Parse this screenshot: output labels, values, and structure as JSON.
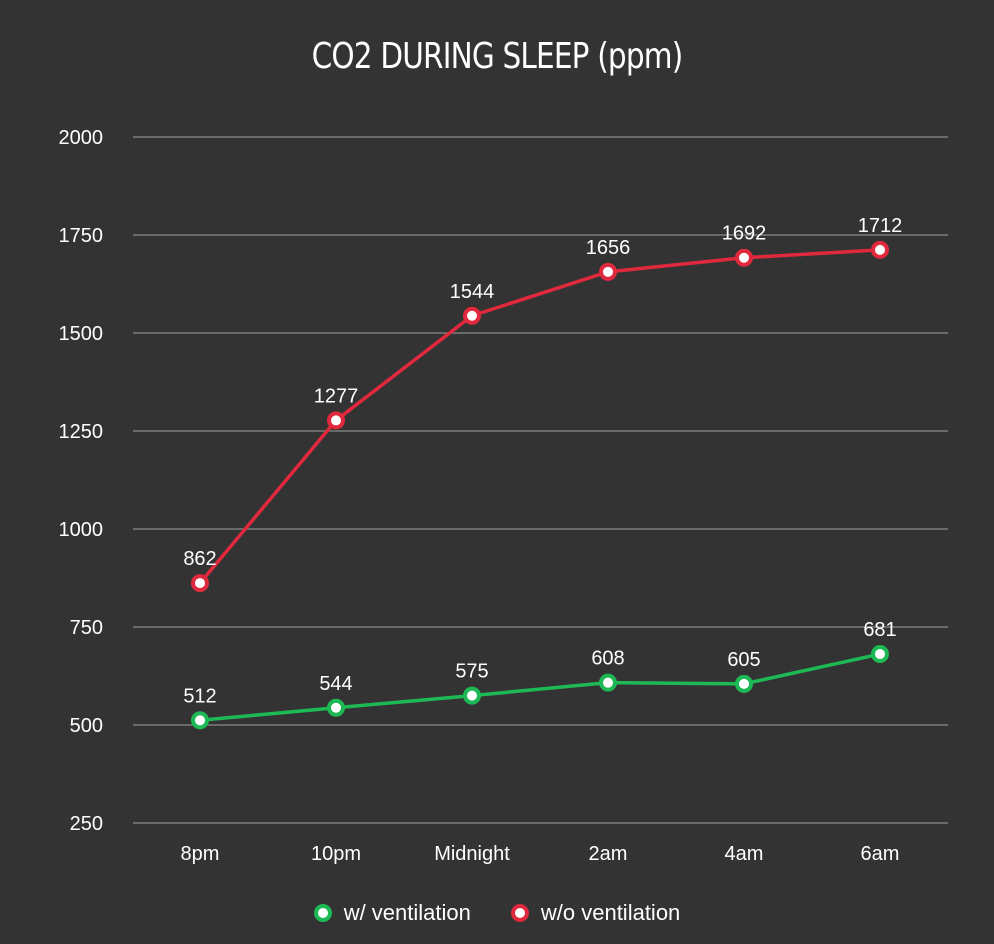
{
  "chart_data": {
    "type": "line",
    "title": "CO2 DURING SLEEP (ppm)",
    "categories": [
      "8pm",
      "10pm",
      "Midnight",
      "2am",
      "4am",
      "6am"
    ],
    "yticks": [
      250,
      500,
      750,
      1000,
      1250,
      1500,
      1750,
      2000
    ],
    "ylim": [
      250,
      2000
    ],
    "grid": true,
    "legend_position": "bottom",
    "series": [
      {
        "name": "w/ ventilation",
        "color": "#1db954",
        "values": [
          512,
          544,
          575,
          608,
          605,
          681
        ]
      },
      {
        "name": "w/o ventilation",
        "color": "#e0293d",
        "values": [
          862,
          1277,
          1544,
          1656,
          1692,
          1712
        ]
      }
    ]
  }
}
